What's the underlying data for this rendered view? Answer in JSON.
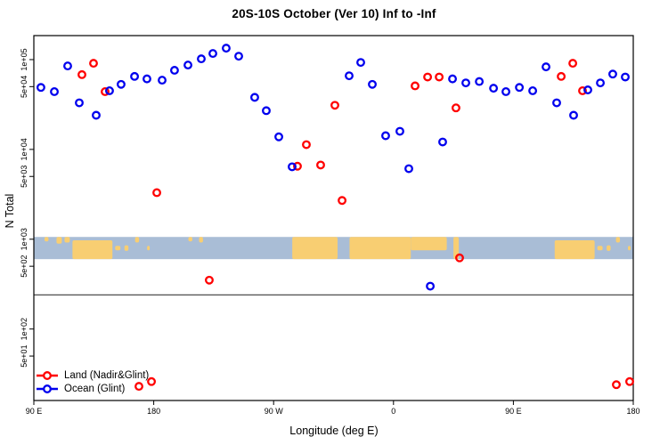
{
  "title": "20S-10S October (Ver 10)   Inf to -Inf",
  "x_axis": {
    "label": "Longitude (deg E)",
    "ticks": [
      {
        "deg": 90,
        "label": "90 E"
      },
      {
        "deg": 180,
        "label": "180"
      },
      {
        "deg": 270,
        "label": "90 W"
      },
      {
        "deg": 360,
        "label": "0"
      },
      {
        "deg": 450,
        "label": "90 E"
      },
      {
        "deg": 540,
        "label": "180"
      }
    ]
  },
  "y_axis": {
    "label": "N Total",
    "ticks": [
      {
        "value": 100000,
        "label": "1e+05"
      },
      {
        "value": 50000,
        "label": "5e+04"
      },
      {
        "value": 10000,
        "label": "1e+04"
      },
      {
        "value": 5000,
        "label": "5e+03"
      },
      {
        "value": 1000,
        "label": "1e+03"
      },
      {
        "value": 500,
        "label": "5e+02"
      },
      {
        "value": 100,
        "label": "1e+02"
      },
      {
        "value": 50,
        "label": "5e+01"
      }
    ]
  },
  "legend": {
    "items": [
      {
        "label": "Land (Nadir&Glint)",
        "color": "#ff0000"
      },
      {
        "label": "Ocean (Glint)",
        "color": "#0000ee"
      }
    ]
  },
  "colors": {
    "land_series": "#ff0000",
    "ocean_series": "#0000ee",
    "map_ocean": "#a9bdd6",
    "map_land": "#f8ce72",
    "axis": "#000000",
    "ref_line": "#3a3a3a"
  },
  "chart_data": {
    "type": "scatter",
    "title": "20S-10S October (Ver 10)   Inf to -Inf",
    "xlabel": "Longitude (deg E)",
    "ylabel": "N Total",
    "x_scale": "linear_wrapped_longitude",
    "y_scale": "log",
    "x_range_deg": [
      90,
      540
    ],
    "y_range": [
      16,
      185000
    ],
    "grid": false,
    "legend_position": "bottom-left",
    "reference_line_n": 240,
    "map_band": {
      "n_range": [
        600,
        1060
      ],
      "description": "world coastline strip for 20S-10S latitude band",
      "land_segments": [
        {
          "from": 98,
          "to": 101,
          "anchor": "top",
          "frac": 0.2
        },
        {
          "from": 107,
          "to": 111,
          "anchor": "top",
          "frac": 0.3
        },
        {
          "from": 113,
          "to": 117,
          "anchor": "top",
          "frac": 0.25
        },
        {
          "from": 119,
          "to": 149,
          "anchor": "bottom",
          "frac": 0.85
        },
        {
          "from": 151,
          "to": 155,
          "anchor": "mid",
          "frac": 0.2
        },
        {
          "from": 158,
          "to": 161,
          "anchor": "mid",
          "frac": 0.25
        },
        {
          "from": 166,
          "to": 169,
          "anchor": "top",
          "frac": 0.25
        },
        {
          "from": 175,
          "to": 177,
          "anchor": "mid",
          "frac": 0.2
        },
        {
          "from": 206,
          "to": 209,
          "anchor": "top",
          "frac": 0.2
        },
        {
          "from": 214,
          "to": 217,
          "anchor": "top",
          "frac": 0.25
        },
        {
          "from": 284,
          "to": 318,
          "anchor": "top",
          "frac": 1.0
        },
        {
          "from": 327,
          "to": 373,
          "anchor": "top",
          "frac": 1.0
        },
        {
          "from": 373,
          "to": 400,
          "anchor": "top",
          "frac": 0.6
        },
        {
          "from": 405,
          "to": 409,
          "anchor": "top",
          "frac": 1.0
        },
        {
          "from": 481,
          "to": 511,
          "anchor": "bottom",
          "frac": 0.85
        },
        {
          "from": 513,
          "to": 517,
          "anchor": "mid",
          "frac": 0.2
        },
        {
          "from": 520,
          "to": 523,
          "anchor": "mid",
          "frac": 0.25
        },
        {
          "from": 527,
          "to": 530,
          "anchor": "top",
          "frac": 0.25
        },
        {
          "from": 536,
          "to": 538,
          "anchor": "mid",
          "frac": 0.2
        }
      ]
    },
    "series": [
      {
        "name": "Land (Nadir&Glint)",
        "color": "#ff0000",
        "marker": "open-circle",
        "points": [
          [
            126.1,
            68000
          ],
          [
            134.8,
            91000
          ],
          [
            143.5,
            44000
          ],
          [
            168.9,
            23
          ],
          [
            178.3,
            26
          ],
          [
            182.3,
            3300
          ],
          [
            221.7,
            350
          ],
          [
            287.9,
            6500
          ],
          [
            294.6,
            11300
          ],
          [
            305.3,
            6700
          ],
          [
            316.0,
            31000
          ],
          [
            321.4,
            2700
          ],
          [
            376.2,
            51000
          ],
          [
            385.6,
            64000
          ],
          [
            394.3,
            64000
          ],
          [
            406.9,
            29000
          ],
          [
            409.6,
            620
          ],
          [
            485.9,
            65000
          ],
          [
            494.6,
            91000
          ],
          [
            501.9,
            45000
          ],
          [
            527.3,
            24
          ],
          [
            537.3,
            26
          ]
        ]
      },
      {
        "name": "Ocean (Glint)",
        "color": "#0000ee",
        "marker": "open-circle",
        "points": [
          [
            95.3,
            49000
          ],
          [
            105.4,
            44000
          ],
          [
            115.4,
            85000
          ],
          [
            124.1,
            33000
          ],
          [
            136.8,
            24000
          ],
          [
            146.8,
            45000
          ],
          [
            155.5,
            53000
          ],
          [
            165.6,
            65000
          ],
          [
            174.9,
            61000
          ],
          [
            186.3,
            59000
          ],
          [
            195.6,
            76000
          ],
          [
            205.7,
            87000
          ],
          [
            215.7,
            102000
          ],
          [
            224.4,
            117000
          ],
          [
            234.4,
            134000
          ],
          [
            243.8,
            109000
          ],
          [
            255.8,
            38000
          ],
          [
            264.5,
            27000
          ],
          [
            273.9,
            13800
          ],
          [
            283.9,
            6400
          ],
          [
            326.7,
            66000
          ],
          [
            335.4,
            93000
          ],
          [
            344.1,
            53000
          ],
          [
            354.1,
            14200
          ],
          [
            364.8,
            15900
          ],
          [
            371.5,
            6100
          ],
          [
            387.6,
            300
          ],
          [
            396.9,
            12100
          ],
          [
            404.3,
            61000
          ],
          [
            414.3,
            55000
          ],
          [
            424.4,
            57000
          ],
          [
            435.1,
            48000
          ],
          [
            444.4,
            44000
          ],
          [
            454.5,
            49000
          ],
          [
            464.5,
            45000
          ],
          [
            474.5,
            83000
          ],
          [
            482.5,
            33000
          ],
          [
            495.2,
            24000
          ],
          [
            505.9,
            46000
          ],
          [
            515.3,
            55000
          ],
          [
            524.6,
            69000
          ],
          [
            534.0,
            64000
          ]
        ]
      }
    ]
  }
}
